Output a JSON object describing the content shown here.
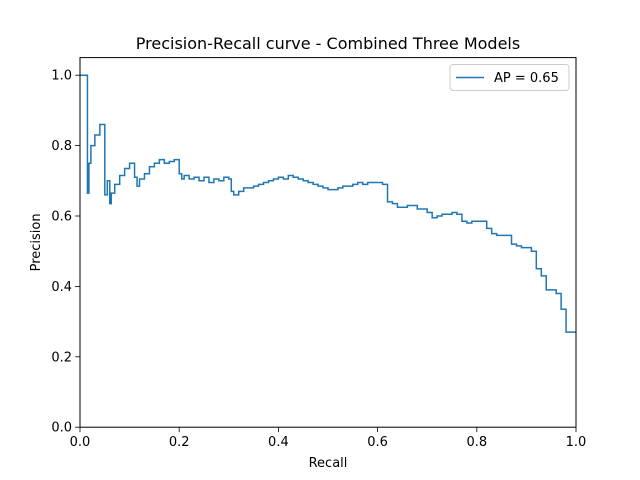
{
  "chart_data": {
    "type": "line",
    "drawstyle": "steps-post",
    "title": "Precision-Recall curve - Combined Three Models",
    "xlabel": "Recall",
    "ylabel": "Precision",
    "xlim": [
      0.0,
      1.0
    ],
    "ylim": [
      0.0,
      1.05
    ],
    "xticks": [
      0.0,
      0.2,
      0.4,
      0.6,
      0.8,
      1.0
    ],
    "yticks": [
      0.0,
      0.2,
      0.4,
      0.6,
      0.8,
      1.0
    ],
    "xtick_labels": [
      "0.0",
      "0.2",
      "0.4",
      "0.6",
      "0.8",
      "1.0"
    ],
    "ytick_labels": [
      "0.0",
      "0.2",
      "0.4",
      "0.6",
      "0.8",
      "1.0"
    ],
    "grid": false,
    "legend_position": "top-right",
    "colors": {
      "series": "#1f77b4",
      "axes": "#000000",
      "legend_border": "#cccccc"
    },
    "series": [
      {
        "name": "AP = 0.65",
        "points": [
          [
            0.0,
            1.0
          ],
          [
            0.015,
            1.0
          ],
          [
            0.015,
            0.665
          ],
          [
            0.018,
            0.75
          ],
          [
            0.022,
            0.8
          ],
          [
            0.03,
            0.83
          ],
          [
            0.04,
            0.86
          ],
          [
            0.05,
            0.86
          ],
          [
            0.05,
            0.66
          ],
          [
            0.055,
            0.7
          ],
          [
            0.06,
            0.635
          ],
          [
            0.063,
            0.665
          ],
          [
            0.07,
            0.69
          ],
          [
            0.08,
            0.715
          ],
          [
            0.09,
            0.735
          ],
          [
            0.1,
            0.75
          ],
          [
            0.11,
            0.71
          ],
          [
            0.115,
            0.685
          ],
          [
            0.12,
            0.705
          ],
          [
            0.13,
            0.72
          ],
          [
            0.14,
            0.74
          ],
          [
            0.15,
            0.75
          ],
          [
            0.16,
            0.76
          ],
          [
            0.17,
            0.75
          ],
          [
            0.18,
            0.755
          ],
          [
            0.19,
            0.76
          ],
          [
            0.2,
            0.72
          ],
          [
            0.205,
            0.705
          ],
          [
            0.21,
            0.715
          ],
          [
            0.22,
            0.705
          ],
          [
            0.23,
            0.71
          ],
          [
            0.24,
            0.7
          ],
          [
            0.25,
            0.71
          ],
          [
            0.26,
            0.695
          ],
          [
            0.27,
            0.705
          ],
          [
            0.28,
            0.7
          ],
          [
            0.29,
            0.71
          ],
          [
            0.3,
            0.705
          ],
          [
            0.305,
            0.67
          ],
          [
            0.31,
            0.66
          ],
          [
            0.32,
            0.67
          ],
          [
            0.33,
            0.68
          ],
          [
            0.35,
            0.685
          ],
          [
            0.36,
            0.69
          ],
          [
            0.37,
            0.695
          ],
          [
            0.38,
            0.7
          ],
          [
            0.39,
            0.705
          ],
          [
            0.4,
            0.71
          ],
          [
            0.41,
            0.705
          ],
          [
            0.42,
            0.715
          ],
          [
            0.43,
            0.71
          ],
          [
            0.44,
            0.705
          ],
          [
            0.45,
            0.7
          ],
          [
            0.46,
            0.695
          ],
          [
            0.47,
            0.69
          ],
          [
            0.48,
            0.685
          ],
          [
            0.49,
            0.68
          ],
          [
            0.5,
            0.675
          ],
          [
            0.52,
            0.68
          ],
          [
            0.53,
            0.685
          ],
          [
            0.55,
            0.69
          ],
          [
            0.56,
            0.695
          ],
          [
            0.57,
            0.69
          ],
          [
            0.58,
            0.695
          ],
          [
            0.61,
            0.69
          ],
          [
            0.62,
            0.64
          ],
          [
            0.63,
            0.635
          ],
          [
            0.64,
            0.625
          ],
          [
            0.66,
            0.63
          ],
          [
            0.68,
            0.62
          ],
          [
            0.7,
            0.61
          ],
          [
            0.71,
            0.595
          ],
          [
            0.72,
            0.6
          ],
          [
            0.73,
            0.605
          ],
          [
            0.75,
            0.61
          ],
          [
            0.76,
            0.605
          ],
          [
            0.77,
            0.585
          ],
          [
            0.78,
            0.58
          ],
          [
            0.79,
            0.585
          ],
          [
            0.81,
            0.585
          ],
          [
            0.82,
            0.565
          ],
          [
            0.83,
            0.55
          ],
          [
            0.84,
            0.545
          ],
          [
            0.86,
            0.545
          ],
          [
            0.87,
            0.52
          ],
          [
            0.88,
            0.515
          ],
          [
            0.89,
            0.51
          ],
          [
            0.91,
            0.5
          ],
          [
            0.92,
            0.45
          ],
          [
            0.93,
            0.43
          ],
          [
            0.94,
            0.39
          ],
          [
            0.95,
            0.39
          ],
          [
            0.96,
            0.38
          ],
          [
            0.97,
            0.335
          ],
          [
            0.98,
            0.27
          ],
          [
            1.0,
            0.27
          ]
        ]
      }
    ]
  }
}
